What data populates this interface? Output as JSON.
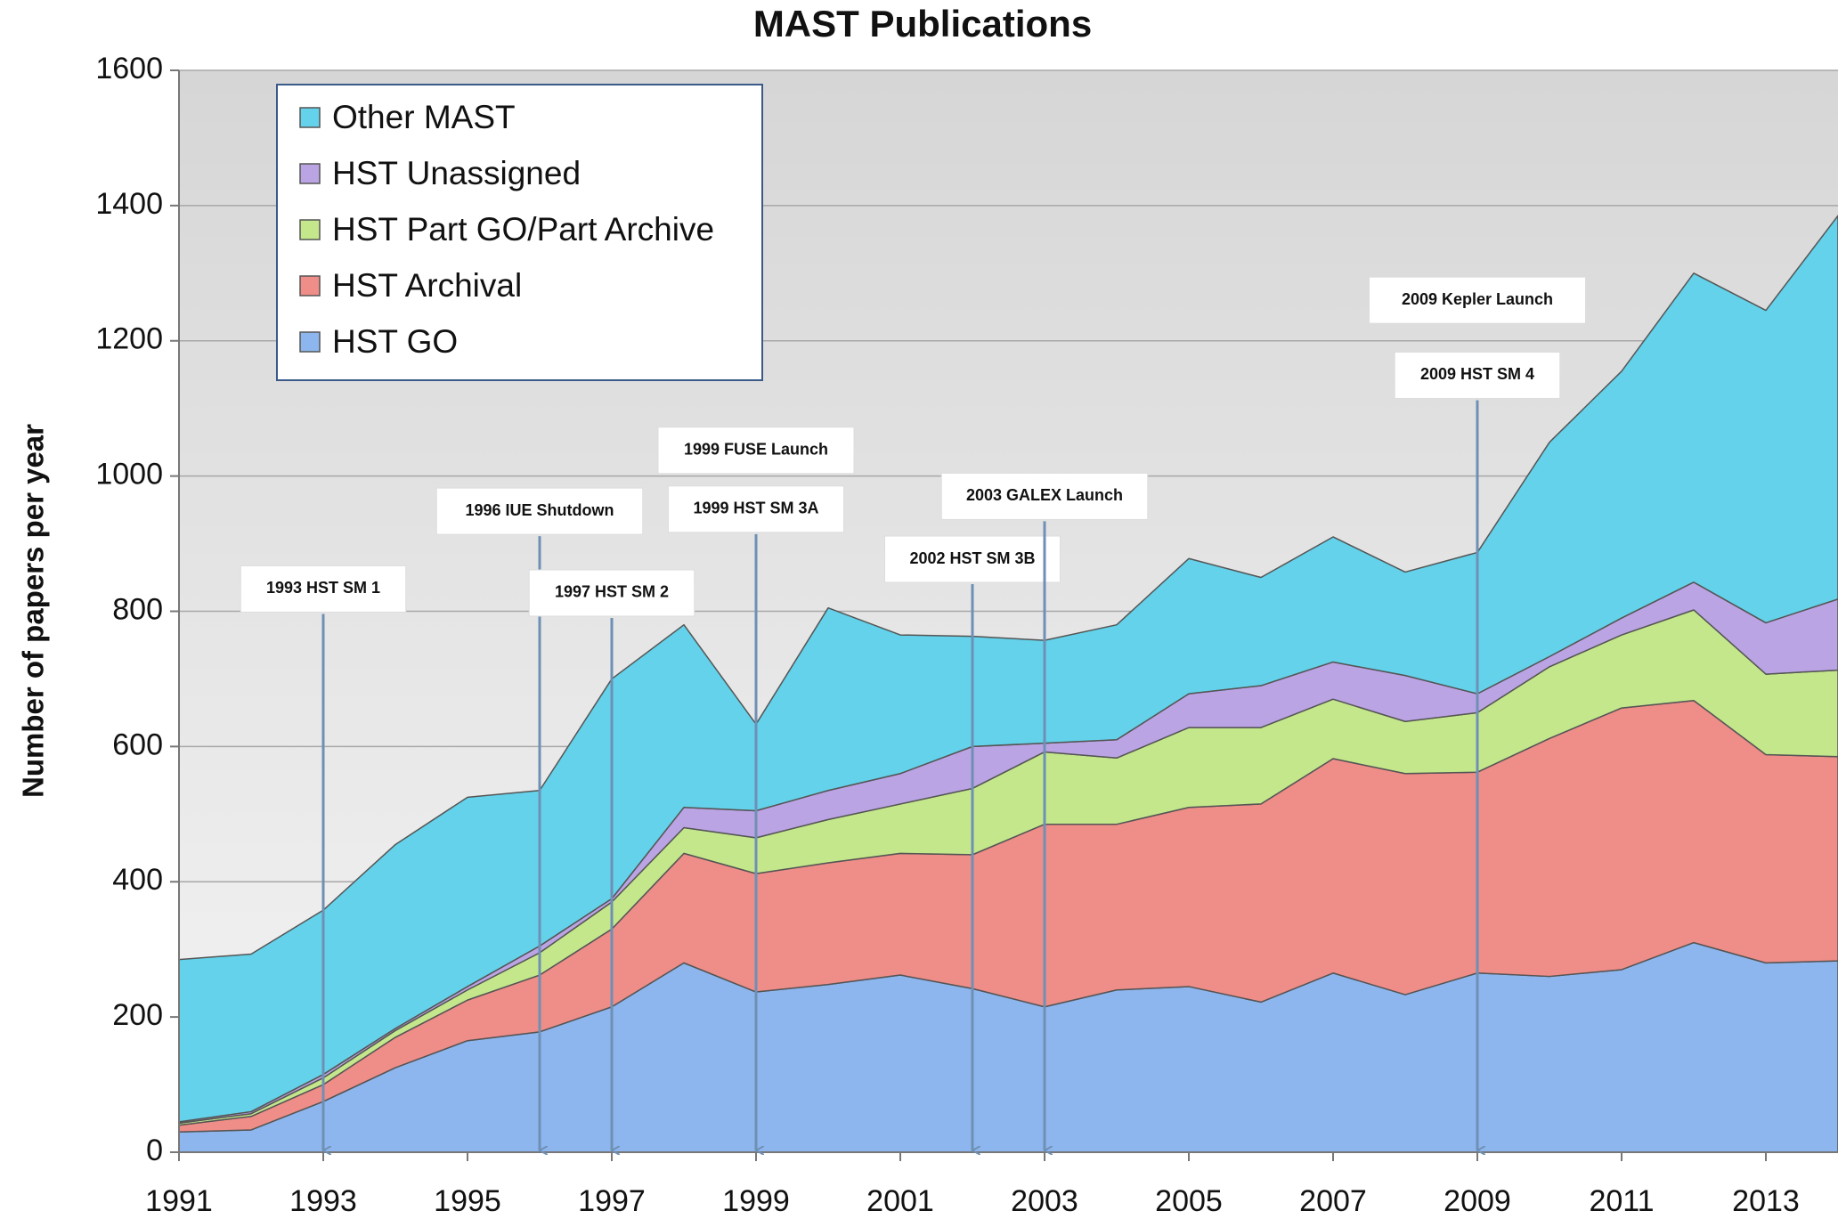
{
  "chart_data": {
    "type": "stacked_area",
    "title": "MAST Publications",
    "y_label": "Number of papers per year",
    "x": [
      1991,
      1992,
      1993,
      1994,
      1995,
      1996,
      1997,
      1998,
      1999,
      2000,
      2001,
      2002,
      2003,
      2004,
      2005,
      2006,
      2007,
      2008,
      2009,
      2010,
      2011,
      2012,
      2013,
      2014
    ],
    "series": [
      {
        "name": "HST GO",
        "color": "#8db6ee",
        "values": [
          30,
          33,
          75,
          125,
          165,
          178,
          215,
          280,
          237,
          248,
          262,
          242,
          215,
          240,
          245,
          222,
          265,
          233,
          265,
          260,
          270,
          310,
          280,
          283
        ]
      },
      {
        "name": "HST Archival",
        "color": "#ef8d88",
        "values": [
          10,
          20,
          25,
          45,
          60,
          84,
          115,
          162,
          175,
          180,
          180,
          198,
          270,
          245,
          265,
          293,
          317,
          327,
          297,
          352,
          387,
          358,
          308,
          302
        ]
      },
      {
        "name": "HST Part GO/Part Archive",
        "color": "#c4e78c",
        "values": [
          3,
          4,
          10,
          10,
          15,
          33,
          40,
          38,
          53,
          64,
          73,
          98,
          107,
          98,
          118,
          113,
          88,
          77,
          88,
          106,
          108,
          134,
          119,
          128
        ]
      },
      {
        "name": "HST Unassigned",
        "color": "#bba4e4",
        "values": [
          2,
          3,
          5,
          3,
          5,
          10,
          5,
          30,
          40,
          43,
          45,
          62,
          13,
          27,
          50,
          62,
          55,
          68,
          28,
          15,
          25,
          41,
          76,
          105
        ]
      },
      {
        "name": "Other MAST",
        "color": "#63d2ea",
        "values": [
          240,
          233,
          243,
          272,
          280,
          230,
          325,
          270,
          128,
          270,
          205,
          163,
          152,
          170,
          200,
          160,
          185,
          153,
          209,
          317,
          365,
          457,
          462,
          567
        ]
      }
    ],
    "xlim": [
      1991,
      2014
    ],
    "xticks": [
      1991,
      1993,
      1995,
      1997,
      1999,
      2001,
      2003,
      2005,
      2007,
      2009,
      2011,
      2013
    ],
    "ylim": [
      0,
      1600
    ],
    "yticks": [
      0,
      200,
      400,
      600,
      800,
      1000,
      1200,
      1400,
      1600
    ],
    "grid": true,
    "legend": "top-left",
    "annotations": [
      {
        "text": "1993 HST SM 1",
        "x": 1993,
        "y": 833,
        "arrow": true
      },
      {
        "text": "1996 IUE Shutdown",
        "x": 1996,
        "y": 948,
        "arrow": true
      },
      {
        "text": "1997 HST SM 2",
        "x": 1997,
        "y": 827,
        "arrow": true
      },
      {
        "text": "1999 FUSE Launch",
        "x": 1999,
        "y": 1038,
        "arrow": false
      },
      {
        "text": "1999 HST SM 3A",
        "x": 1999,
        "y": 951,
        "arrow": true
      },
      {
        "text": "2002 HST SM 3B",
        "x": 2002,
        "y": 877,
        "arrow": true
      },
      {
        "text": "2003 GALEX Launch",
        "x": 2003,
        "y": 970,
        "arrow": true
      },
      {
        "text": "2009 Kepler Launch",
        "x": 2009,
        "y": 1260,
        "arrow": false
      },
      {
        "text": "2009 HST SM 4",
        "x": 2009,
        "y": 1149,
        "arrow": true
      }
    ]
  }
}
